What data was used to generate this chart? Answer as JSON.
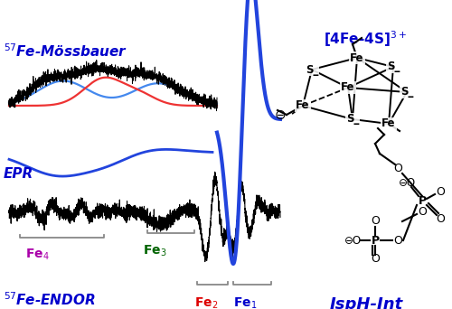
{
  "bg_color": "#ffffff",
  "endor_label": "$^{57}$Fe-ENDOR",
  "epr_label": "EPR",
  "mossbauer_label": "$^{57}$Fe-Mössbauer",
  "isph_label": "IspH-Int",
  "cluster_label": "[4Fe-4S]$^{3+}$",
  "fe1_color": "#0000CC",
  "fe2_color": "#DD0000",
  "fe3_color": "#006400",
  "fe4_color": "#AA00AA",
  "epr_blue": "#2244DD",
  "moss_blue": "#4488EE",
  "moss_red": "#EE3333",
  "label_blue": "#0000CC",
  "label_size": 11,
  "bracket_color": "#888888"
}
